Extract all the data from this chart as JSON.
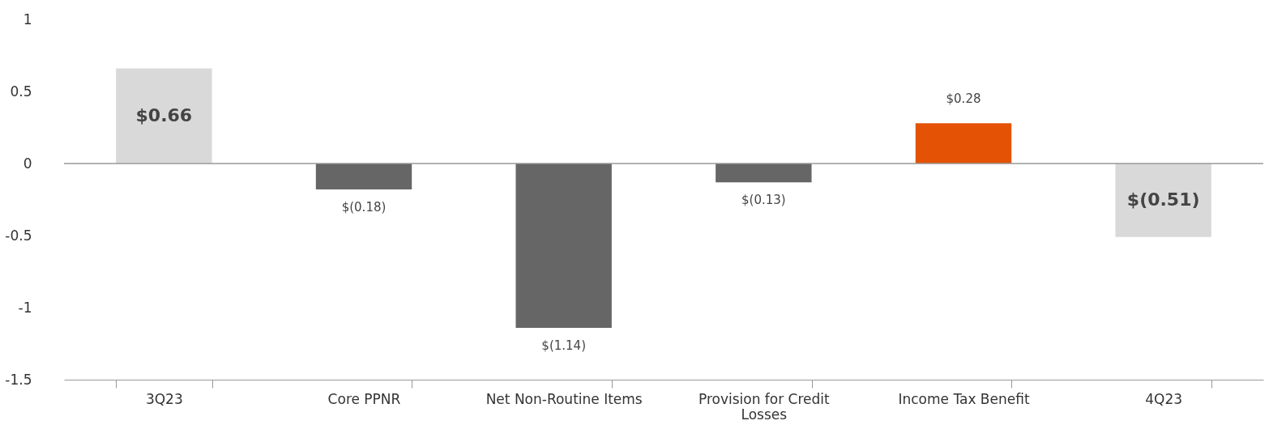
{
  "chart_data": {
    "type": "bar",
    "categories": [
      "3Q23",
      "Core PPNR",
      "Net Non-Routine Items",
      "Provision for Credit Losses",
      "Income Tax Benefit",
      "4Q23"
    ],
    "values": [
      0.66,
      -0.18,
      -1.14,
      -0.13,
      0.28,
      -0.51
    ],
    "colors": [
      "#d9d9d9",
      "#666666",
      "#666666",
      "#666666",
      "#e35205",
      "#d9d9d9"
    ],
    "value_labels": [
      "$0.66",
      "$(0.18)",
      "$(1.14)",
      "$(0.13)",
      "$0.28",
      "$(0.51)"
    ],
    "ylim": [
      -1.5,
      1
    ],
    "yticks": [
      1,
      0.5,
      0,
      -0.5,
      -1,
      -1.5
    ],
    "ref_lines": [
      {
        "axis": "y",
        "value": 0,
        "color": "#999999"
      }
    ]
  }
}
